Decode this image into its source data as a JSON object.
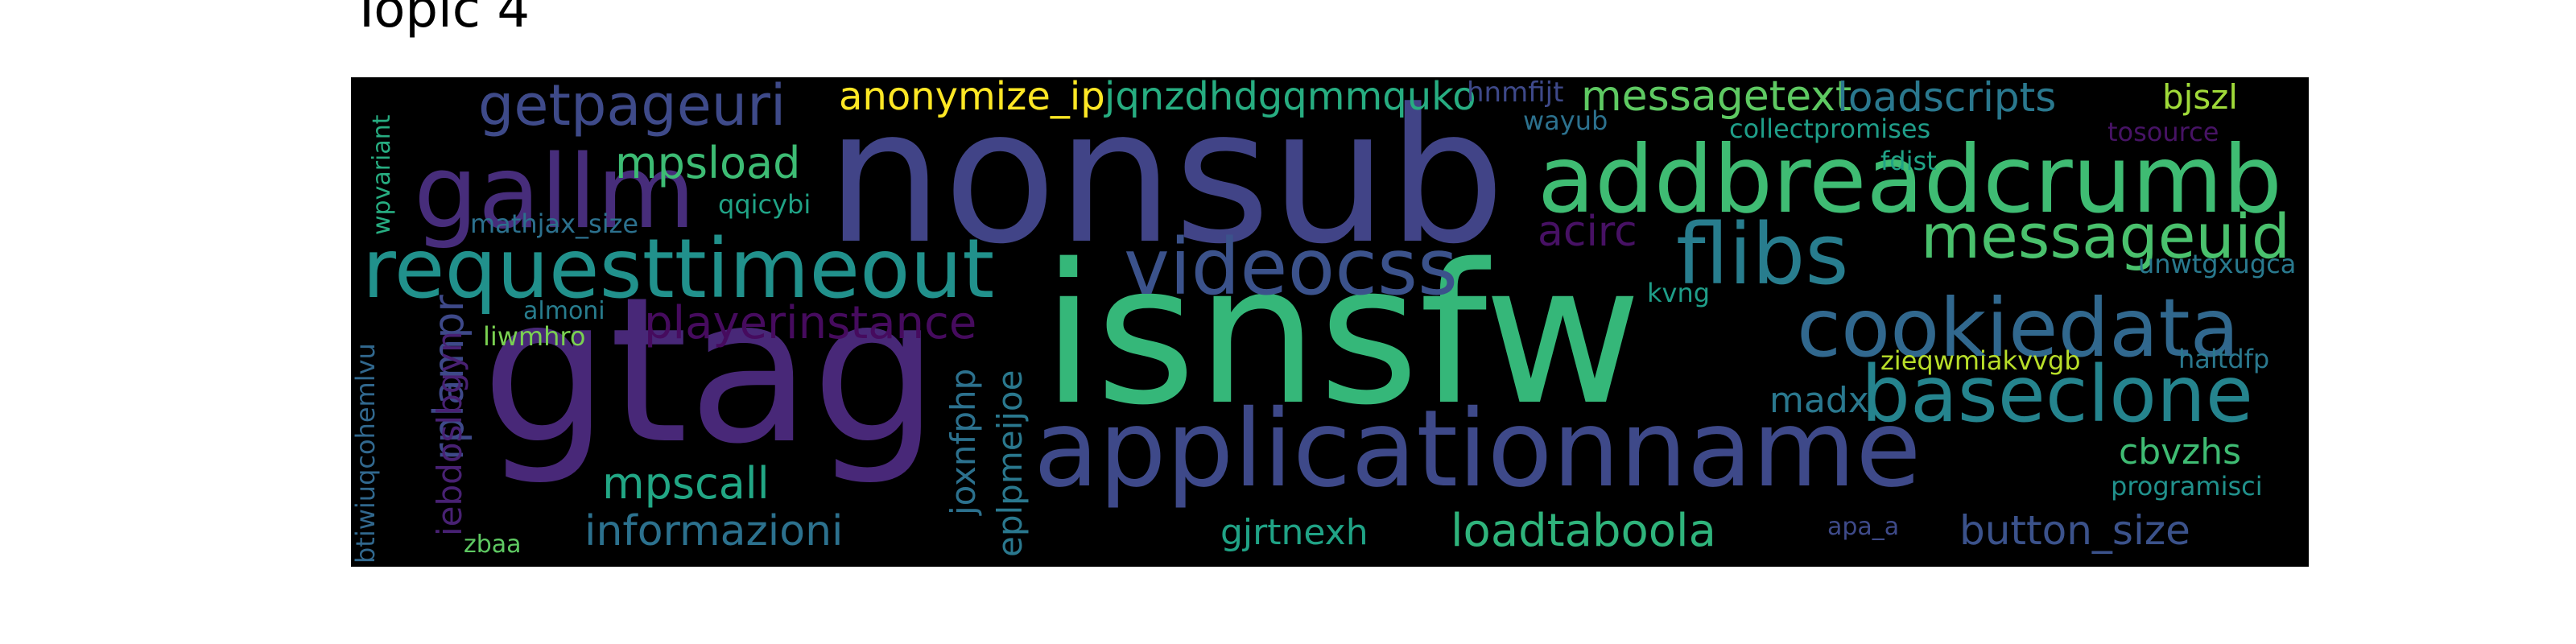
{
  "title": "Topic 4",
  "colors": {
    "background": "#000000",
    "palette": [
      "#482878",
      "#3e4989",
      "#31688e",
      "#26828e",
      "#1f9e89",
      "#35b779",
      "#6ece58",
      "#b5de2b",
      "#fde725",
      "#440154"
    ]
  },
  "words": [
    {
      "text": "nonsub",
      "color": "#414487"
    },
    {
      "text": "isnsfw",
      "color": "#35b779"
    },
    {
      "text": "gtag",
      "color": "#482878"
    },
    {
      "text": "applicationname",
      "color": "#3e4989"
    },
    {
      "text": "addbreadcrumb",
      "color": "#3fbc73"
    },
    {
      "text": "requesttimeout",
      "color": "#21918c"
    },
    {
      "text": "videocss",
      "color": "#3b528b"
    },
    {
      "text": "flibs",
      "color": "#287d8e"
    },
    {
      "text": "cookiedata",
      "color": "#31688e"
    },
    {
      "text": "baseclone",
      "color": "#25848e"
    },
    {
      "text": "gallm",
      "color": "#472d7b"
    },
    {
      "text": "messageuid",
      "color": "#4ac16d"
    },
    {
      "text": "getpageuri",
      "color": "#3e4a89"
    },
    {
      "text": "loadtaboola",
      "color": "#2fb47c"
    },
    {
      "text": "playerinstance",
      "color": "#460b5e"
    },
    {
      "text": "informazioni",
      "color": "#2c718e"
    },
    {
      "text": "messagetext",
      "color": "#5ec962"
    },
    {
      "text": "loadscripts",
      "color": "#2a788e"
    },
    {
      "text": "anonymize_ip",
      "color": "#fde725"
    },
    {
      "text": "jqnzdhdgqmmquko",
      "color": "#27ad81"
    },
    {
      "text": "mpsload",
      "color": "#3dbc74"
    },
    {
      "text": "mpscall",
      "color": "#22a785"
    },
    {
      "text": "button_size",
      "color": "#3b528b"
    },
    {
      "text": "rplampr",
      "color": "#3e4989"
    },
    {
      "text": "acirc",
      "color": "#471164"
    },
    {
      "text": "cbvzhs",
      "color": "#3fbc73"
    },
    {
      "text": "madx",
      "color": "#2a788e"
    },
    {
      "text": "gjrtnexh",
      "color": "#20a386"
    },
    {
      "text": "bjszl",
      "color": "#a0da39"
    },
    {
      "text": "iebdoslbgyn",
      "color": "#482173"
    },
    {
      "text": "joxnfphp",
      "color": "#2c718e"
    },
    {
      "text": "eplpmeijoe",
      "color": "#2a788e"
    },
    {
      "text": "unwtgxugca",
      "color": "#29798e"
    },
    {
      "text": "haltdfp",
      "color": "#2a788e"
    },
    {
      "text": "zieqwmiakvvgb",
      "color": "#b8de29"
    },
    {
      "text": "hnmfijt",
      "color": "#3e4989"
    },
    {
      "text": "wayub",
      "color": "#2c718e"
    },
    {
      "text": "collectpromises",
      "color": "#1f9e89"
    },
    {
      "text": "fdist",
      "color": "#20a386"
    },
    {
      "text": "tosource",
      "color": "#471365"
    },
    {
      "text": "qqicybi",
      "color": "#20a386"
    },
    {
      "text": "mathjax_size",
      "color": "#2c718e"
    },
    {
      "text": "almoni",
      "color": "#287d8e"
    },
    {
      "text": "liwmhro",
      "color": "#7ad151"
    },
    {
      "text": "kvng",
      "color": "#1f9e89"
    },
    {
      "text": "wpvariant",
      "color": "#27ad81"
    },
    {
      "text": "btiwiuqcohemlvu",
      "color": "#31688e"
    },
    {
      "text": "zbaa",
      "color": "#5ec962"
    },
    {
      "text": "programisci",
      "color": "#21918c"
    },
    {
      "text": "apa_a",
      "color": "#3e4a89"
    }
  ]
}
